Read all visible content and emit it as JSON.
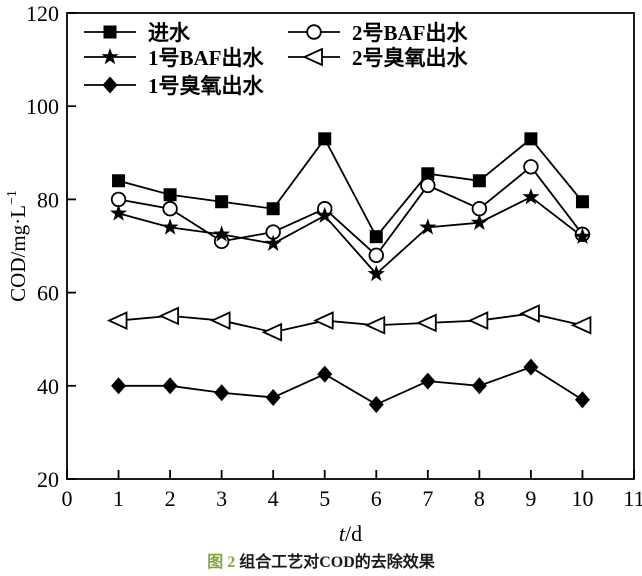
{
  "figure": {
    "caption": {
      "label": "图 2",
      "label_color": "#7fa53b",
      "title": "组合工艺对COD的去除效果"
    }
  },
  "chart_data": {
    "type": "line",
    "x": [
      1,
      2,
      3,
      4,
      5,
      6,
      7,
      8,
      9,
      10
    ],
    "series": [
      {
        "name": "进水",
        "marker": "filled-square",
        "values": [
          84,
          81,
          79.5,
          78,
          93,
          72,
          85.5,
          84,
          93,
          79.5
        ]
      },
      {
        "name": "1号BAF出水",
        "marker": "filled-star",
        "values": [
          77,
          74,
          72.5,
          70.5,
          76.5,
          64,
          74,
          75,
          80.5,
          72
        ]
      },
      {
        "name": "1号臭氧出水",
        "marker": "filled-diamond",
        "values": [
          40,
          40,
          38.5,
          37.5,
          42.5,
          36,
          41,
          40,
          44,
          37
        ]
      },
      {
        "name": "2号BAF出水",
        "marker": "open-circle",
        "values": [
          80,
          78,
          71,
          73,
          78,
          68,
          83,
          78,
          87,
          72.5
        ]
      },
      {
        "name": "2号臭氧出水",
        "marker": "open-left-triangle",
        "values": [
          54,
          55,
          54,
          51.5,
          54,
          53,
          53.5,
          54,
          55.5,
          53
        ]
      }
    ],
    "xlabel": "t/d",
    "ylabel": "COD/mg·L⁻¹",
    "xlim": [
      0,
      11
    ],
    "ylim": [
      20,
      120
    ],
    "xticks": [
      0,
      1,
      2,
      3,
      4,
      5,
      6,
      7,
      8,
      9,
      10,
      11
    ],
    "yticks": [
      20,
      40,
      60,
      80,
      100,
      120
    ],
    "grid": false,
    "legend_position": "top-left-inside",
    "legend_columns": [
      [
        "进水",
        "1号BAF出水",
        "1号臭氧出水"
      ],
      [
        "2号BAF出水",
        "2号臭氧出水"
      ]
    ],
    "line_color": "#000000",
    "background_color": "#ffffff"
  }
}
